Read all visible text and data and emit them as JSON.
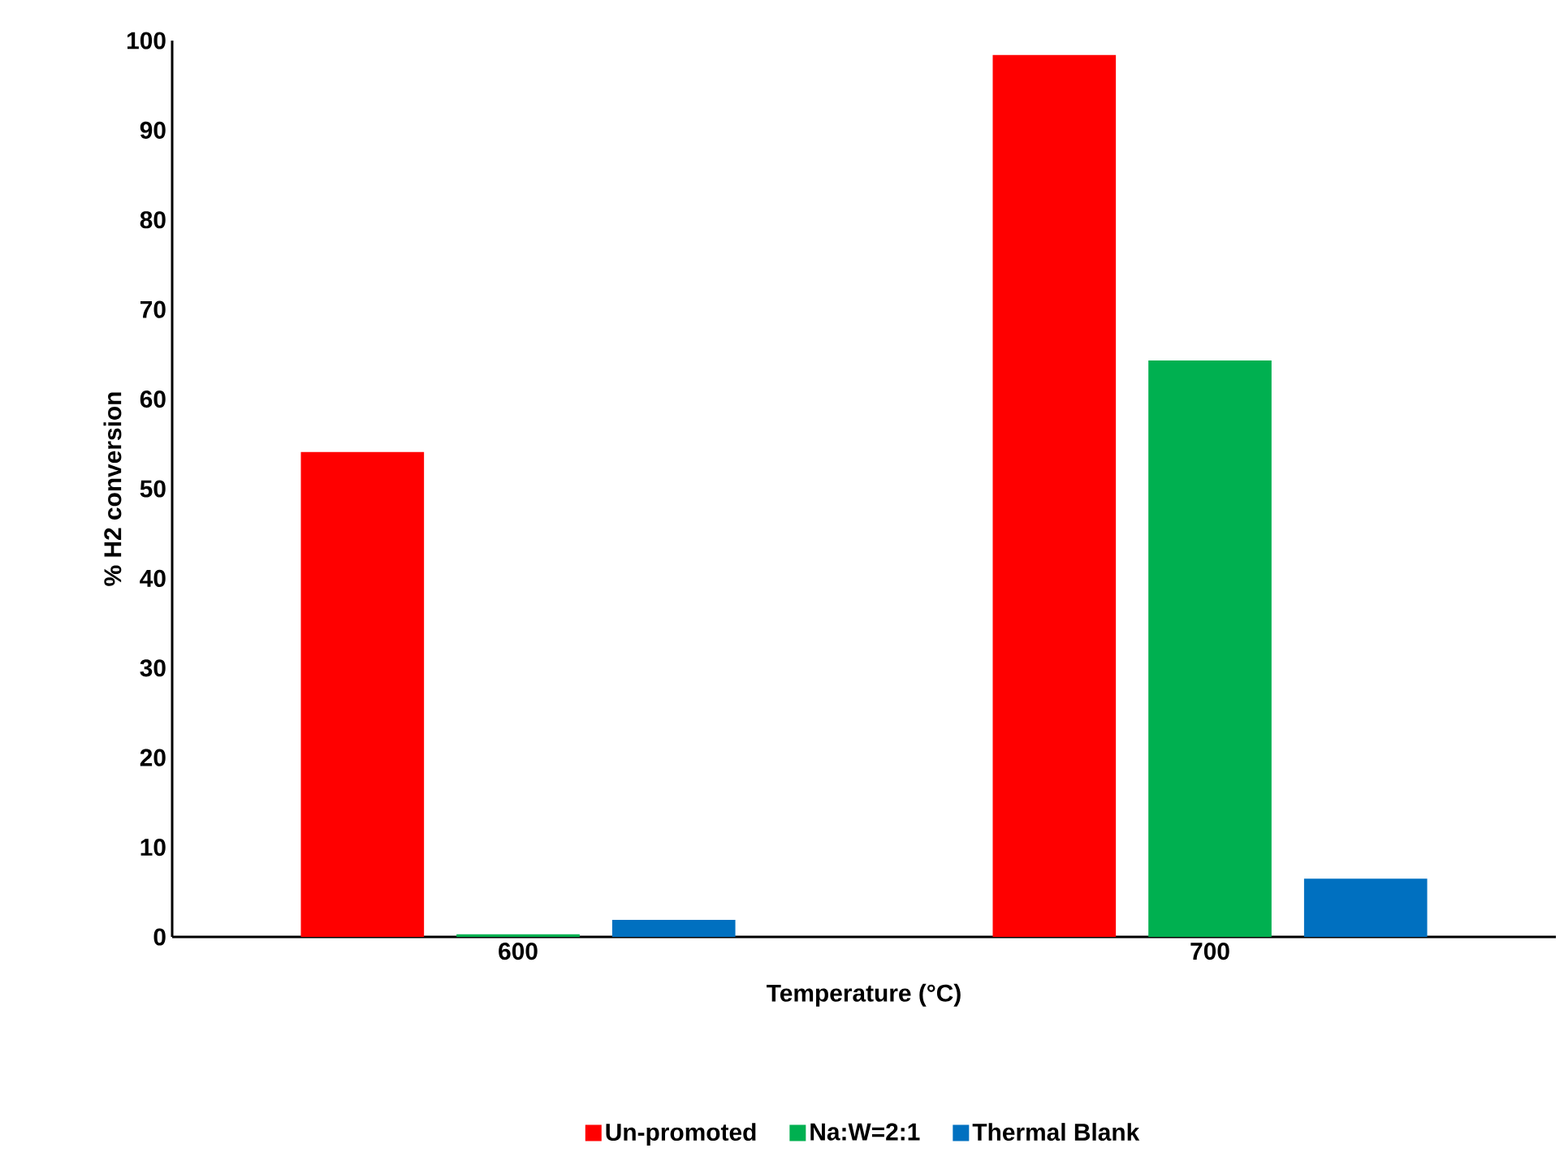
{
  "chart_data": {
    "type": "bar",
    "xlabel": "Temperature (°C)",
    "ylabel": "% H2 conversion",
    "categories": [
      "600",
      "700"
    ],
    "series": [
      {
        "name": "Un-promoted",
        "color": "#ff0000",
        "values": [
          54.1,
          98.4
        ]
      },
      {
        "name": "Na:W=2:1",
        "color": "#00b050",
        "values": [
          0.3,
          64.3
        ]
      },
      {
        "name": "Thermal Blank",
        "color": "#0070c0",
        "values": [
          1.9,
          6.5
        ]
      }
    ],
    "ylim": [
      0,
      100
    ],
    "yticks": [
      0,
      10,
      20,
      30,
      40,
      50,
      60,
      70,
      80,
      90,
      100
    ],
    "grid": false,
    "legend": "bottom"
  }
}
